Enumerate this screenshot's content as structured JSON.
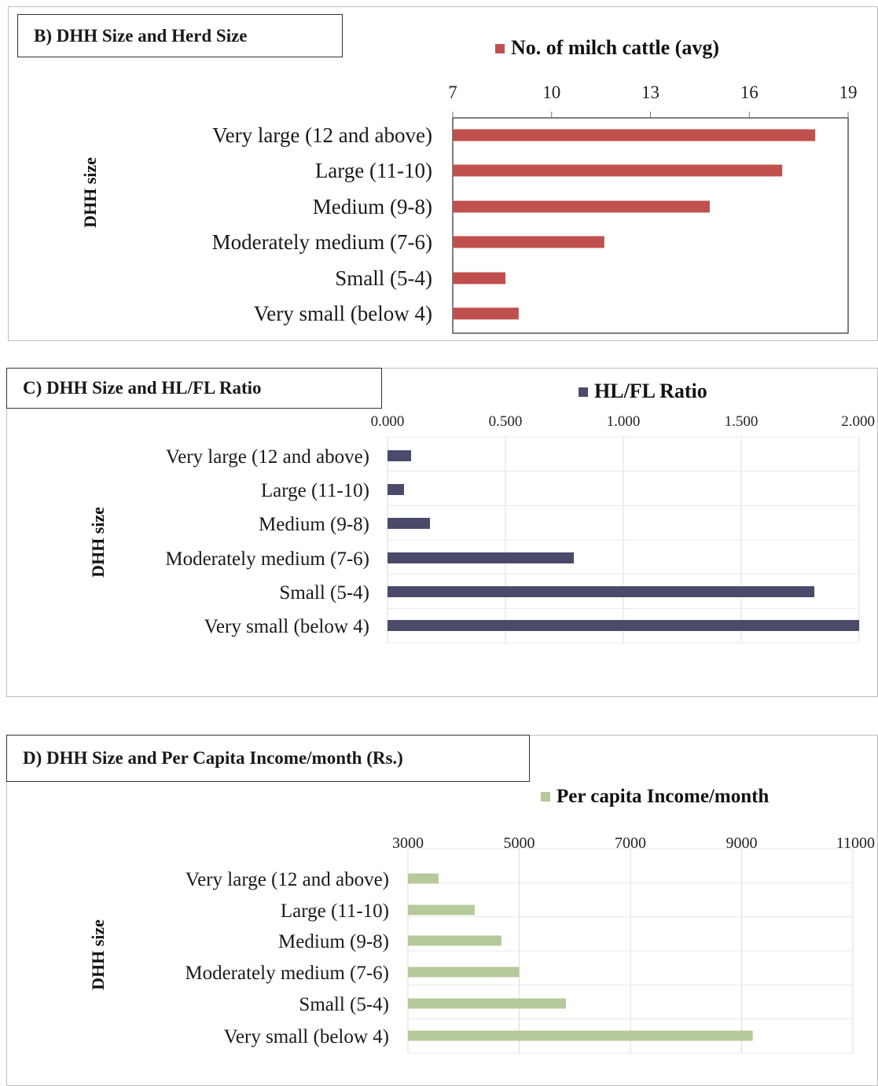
{
  "colors": {
    "herd": "#c0504d",
    "ratio": "#4a4a6a",
    "income": "#b5c99a"
  },
  "y_axis_label": "DHH size",
  "chart_data": [
    {
      "id": "B",
      "type": "bar",
      "orientation": "horizontal",
      "title": "B) DHH Size and Herd Size",
      "categories": [
        "Very large (12 and above)",
        "Large (11-10)",
        "Medium (9-8)",
        "Moderately medium (7-6)",
        "Small (5-4)",
        "Very small (below 4)"
      ],
      "series": [
        {
          "name": "No. of milch cattle (avg)",
          "values": [
            18.0,
            17.0,
            14.8,
            11.6,
            8.6,
            9.0
          ]
        }
      ],
      "xlim": [
        7,
        19
      ],
      "ticks": [
        "7",
        "10",
        "13",
        "16",
        "19"
      ],
      "tick_values": [
        7,
        10,
        13,
        16,
        19
      ],
      "ylabel": "DHH size",
      "grid": false,
      "legend": "top"
    },
    {
      "id": "C",
      "type": "bar",
      "orientation": "horizontal",
      "title": "C) DHH Size and HL/FL Ratio",
      "categories": [
        "Very large (12 and above)",
        "Large (11-10)",
        "Medium (9-8)",
        "Moderately medium (7-6)",
        "Small (5-4)",
        "Very small (below 4)"
      ],
      "series": [
        {
          "name": "HL/FL Ratio",
          "values": [
            0.1,
            0.07,
            0.18,
            0.79,
            1.81,
            2.0
          ]
        }
      ],
      "xlim": [
        0,
        2
      ],
      "ticks": [
        "0.000",
        "0.500",
        "1.000",
        "1.500",
        "2.000"
      ],
      "tick_values": [
        0,
        0.5,
        1.0,
        1.5,
        2.0
      ],
      "ylabel": "DHH size",
      "grid": true,
      "legend": "top"
    },
    {
      "id": "D",
      "type": "bar",
      "orientation": "horizontal",
      "title": "D) DHH Size and Per Capita Income/month (Rs.)",
      "categories": [
        "Very large (12 and above)",
        "Large (11-10)",
        "Medium (9-8)",
        "Moderately medium (7-6)",
        "Small (5-4)",
        "Very small (below 4)"
      ],
      "series": [
        {
          "name": "Per capita Income/month",
          "values": [
            3550,
            4200,
            4680,
            5000,
            5840,
            9200
          ]
        }
      ],
      "xlim": [
        3000,
        11000
      ],
      "ticks": [
        "3000",
        "5000",
        "7000",
        "9000",
        "11000"
      ],
      "tick_values": [
        3000,
        5000,
        7000,
        9000,
        11000
      ],
      "ylabel": "DHH size",
      "grid": true,
      "legend": "top"
    }
  ]
}
